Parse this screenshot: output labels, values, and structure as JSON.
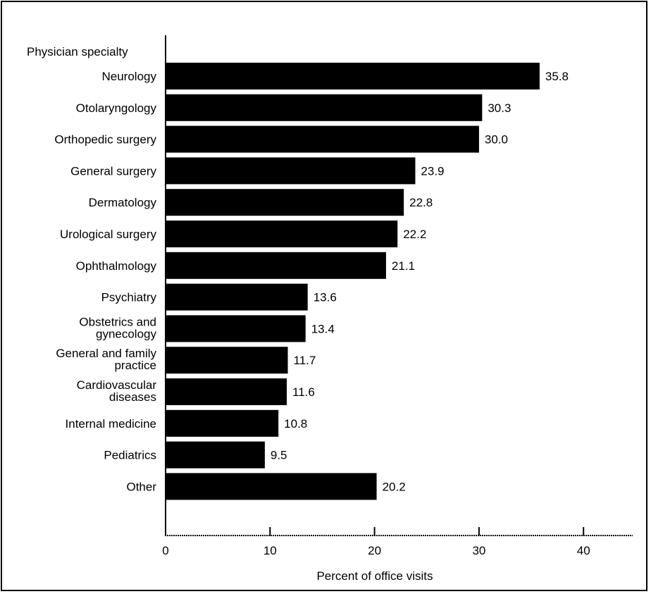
{
  "chart_data": {
    "type": "bar",
    "orientation": "horizontal",
    "category_header": "Physician specialty",
    "categories": [
      [
        "Neurology"
      ],
      [
        "Otolaryngology"
      ],
      [
        "Orthopedic surgery"
      ],
      [
        "General surgery"
      ],
      [
        "Dermatology"
      ],
      [
        "Urological surgery"
      ],
      [
        "Ophthalmology"
      ],
      [
        "Psychiatry"
      ],
      [
        "Obstetrics and",
        "gynecology"
      ],
      [
        "General and family",
        "practice"
      ],
      [
        "Cardiovascular",
        "diseases"
      ],
      [
        "Internal medicine"
      ],
      [
        "Pediatrics"
      ],
      [
        "Other"
      ]
    ],
    "values": [
      35.8,
      30.3,
      30.0,
      23.9,
      22.8,
      22.2,
      21.1,
      13.6,
      13.4,
      11.7,
      11.6,
      10.8,
      9.5,
      20.2
    ],
    "value_labels": [
      "35.8",
      "30.3",
      "30.0",
      "23.9",
      "22.8",
      "22.2",
      "21.1",
      "13.6",
      "13.4",
      "11.7",
      "11.6",
      "10.8",
      "9.5",
      "20.2"
    ],
    "xlabel": "Percent of office visits",
    "xlim": [
      0,
      45
    ],
    "xticks": [
      0,
      10,
      20,
      30,
      40
    ],
    "grid": false,
    "legend": "none",
    "bar_color": "#000000"
  }
}
